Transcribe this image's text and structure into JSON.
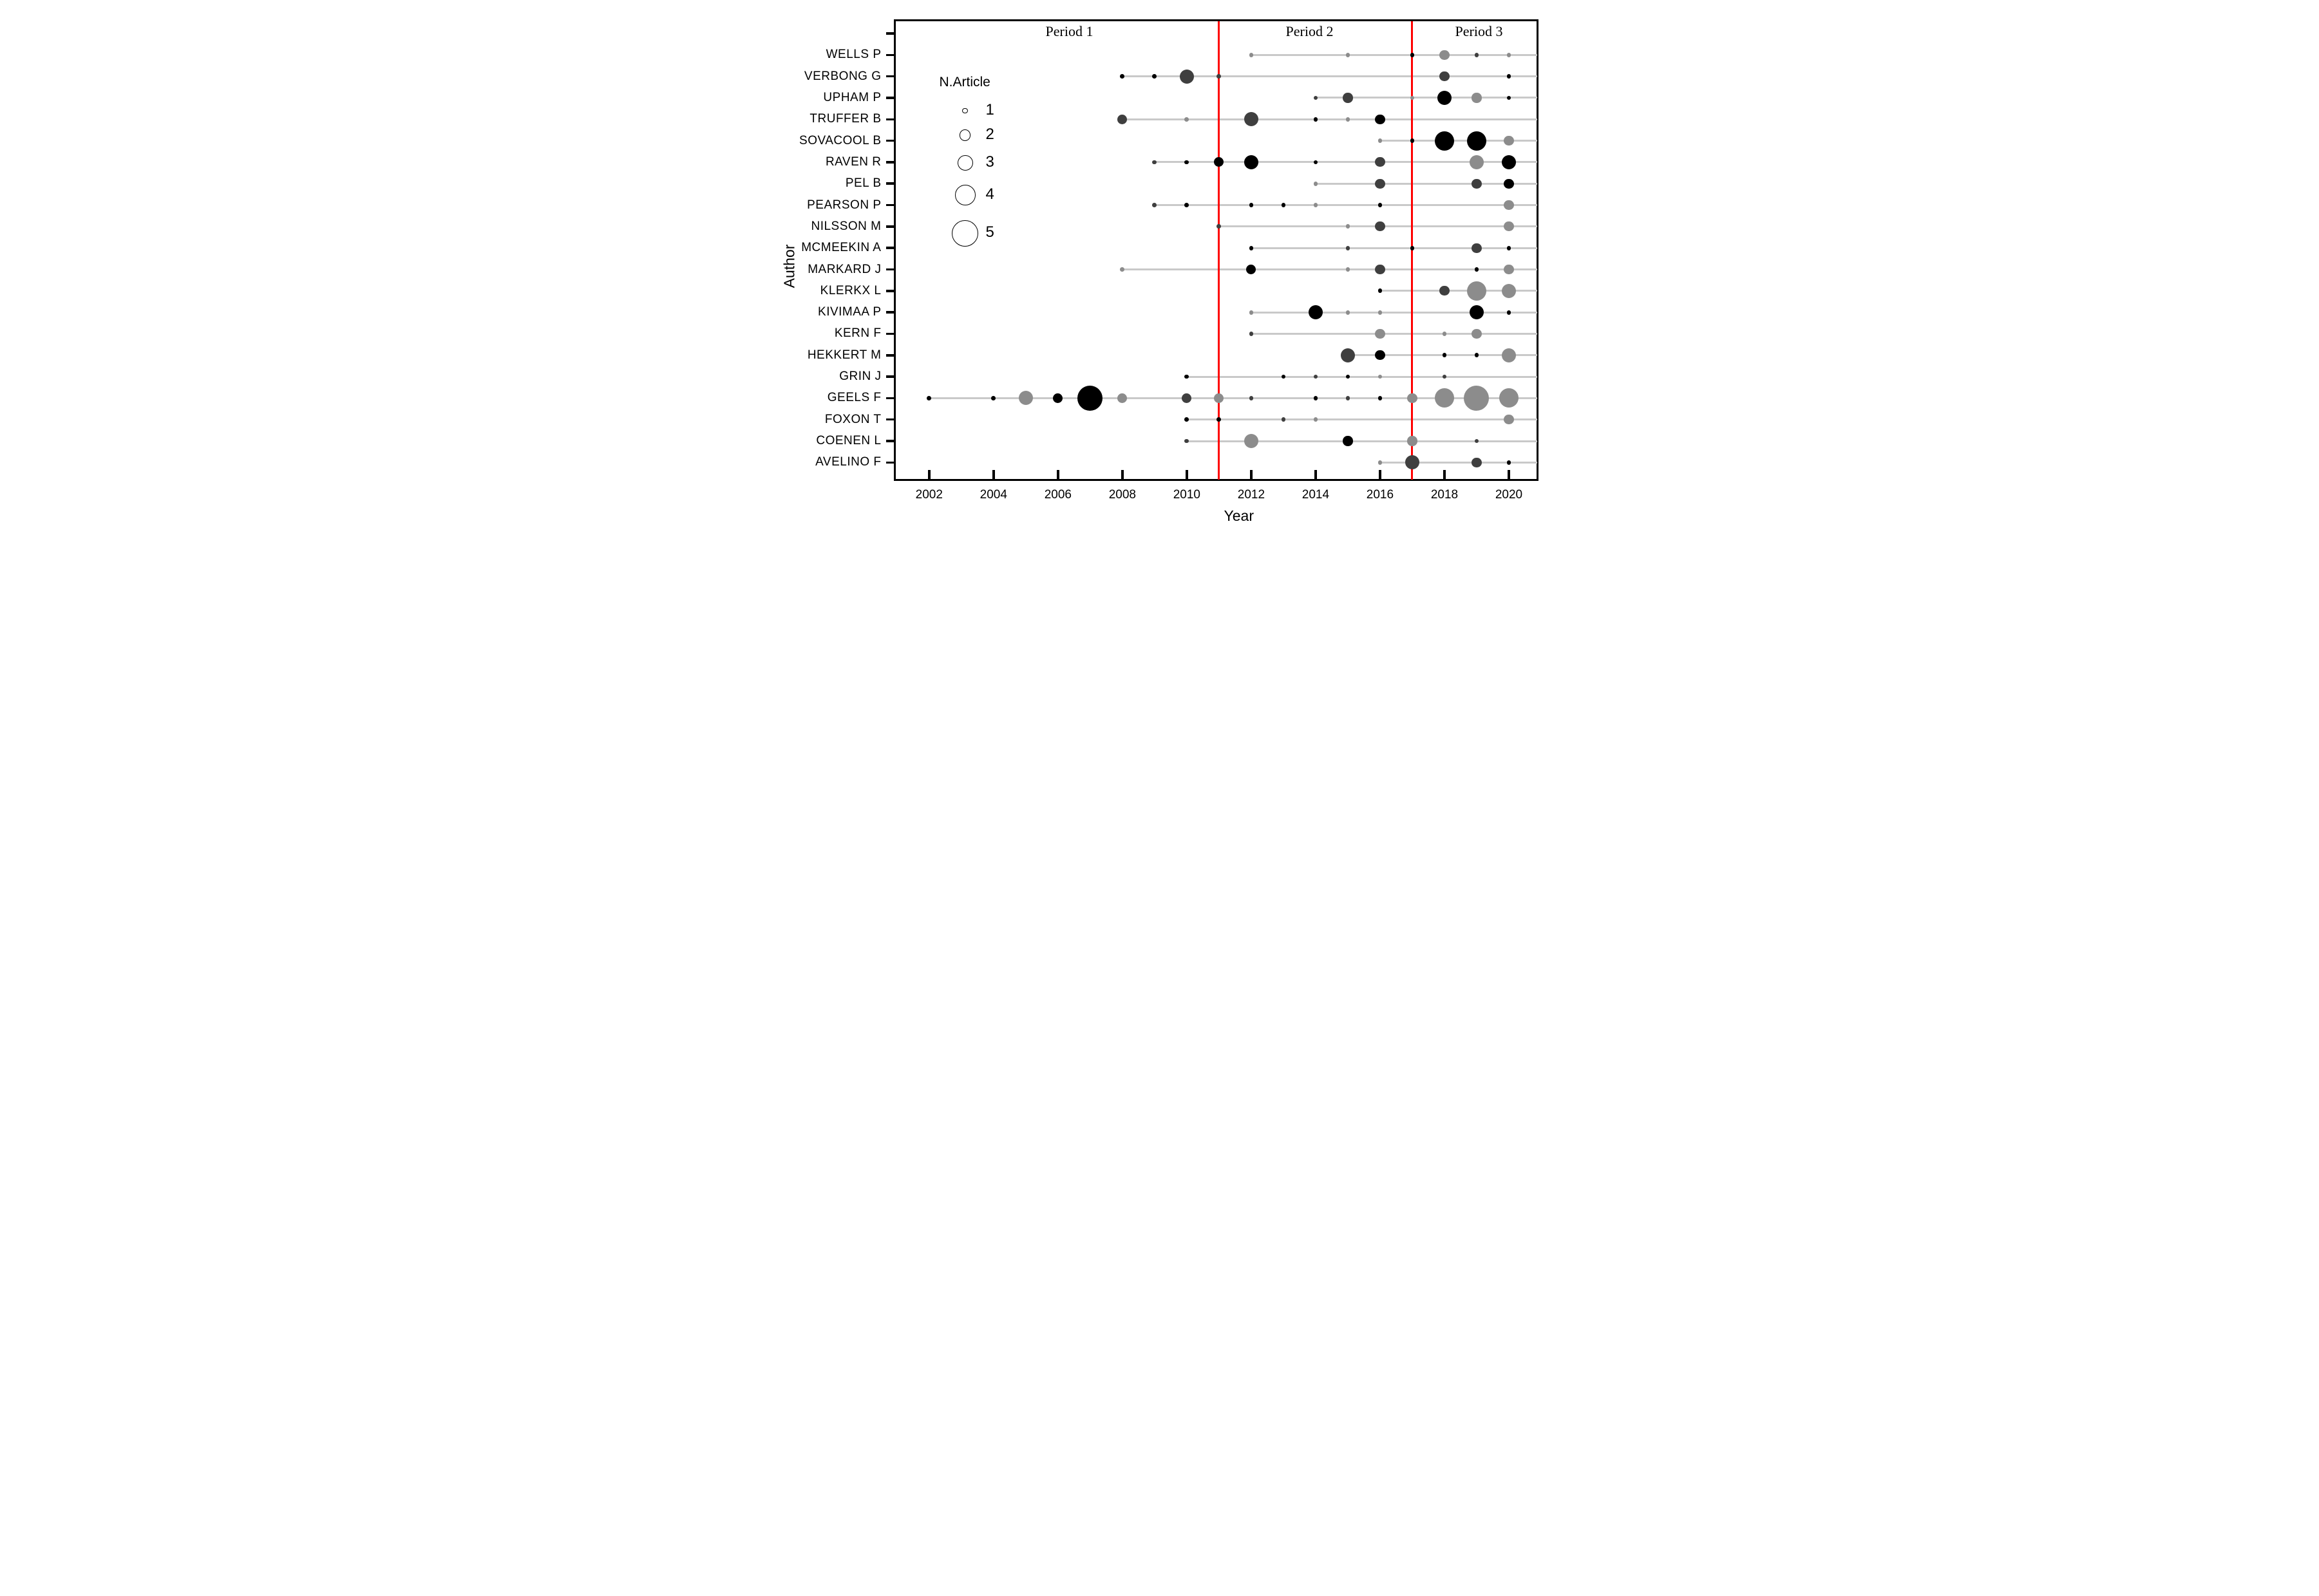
{
  "colors": {
    "black": "#000000",
    "dark": "#3f3f3f",
    "gray": "#8c8c8c",
    "row_line": "#c9c9c9",
    "divider": "#ff0000",
    "background": "#ffffff",
    "text": "#000000"
  },
  "chart_data": {
    "type": "scatter",
    "subtype": "bubble-timeline",
    "xlabel": "Year",
    "ylabel": "Author",
    "x_range": [
      2001,
      2021
    ],
    "x_ticks": [
      2002,
      2004,
      2006,
      2008,
      2010,
      2012,
      2014,
      2016,
      2018,
      2020
    ],
    "grid": false,
    "period_labels": [
      "Period 1",
      "Period 2",
      "Period 3"
    ],
    "period_dividers_years": [
      2011,
      2017
    ],
    "legend": {
      "title": "N.Article",
      "sizes": [
        1,
        2,
        3,
        4,
        5
      ],
      "position": "upper-left-inside"
    },
    "size_note": "bubble size class = number of articles (1-5)",
    "series": [
      {
        "author": "WELLS P",
        "line_start": 2012,
        "points": [
          {
            "year": 2012,
            "n": 1,
            "color": "gray"
          },
          {
            "year": 2015,
            "n": 1,
            "color": "gray"
          },
          {
            "year": 2017,
            "n": 1,
            "color": "black"
          },
          {
            "year": 2018,
            "n": 2,
            "color": "gray"
          },
          {
            "year": 2019,
            "n": 1,
            "color": "dark"
          },
          {
            "year": 2020,
            "n": 1,
            "color": "gray"
          }
        ]
      },
      {
        "author": "VERBONG G",
        "line_start": 2008,
        "points": [
          {
            "year": 2008,
            "n": 1,
            "color": "black"
          },
          {
            "year": 2009,
            "n": 1,
            "color": "black"
          },
          {
            "year": 2010,
            "n": 3,
            "color": "dark"
          },
          {
            "year": 2011,
            "n": 1,
            "color": "dark"
          },
          {
            "year": 2018,
            "n": 2,
            "color": "dark"
          },
          {
            "year": 2020,
            "n": 1,
            "color": "black"
          }
        ]
      },
      {
        "author": "UPHAM P",
        "line_start": 2014,
        "points": [
          {
            "year": 2014,
            "n": 1,
            "color": "dark"
          },
          {
            "year": 2015,
            "n": 2,
            "color": "dark"
          },
          {
            "year": 2017,
            "n": 1,
            "color": "gray"
          },
          {
            "year": 2018,
            "n": 3,
            "color": "black"
          },
          {
            "year": 2019,
            "n": 2,
            "color": "gray"
          },
          {
            "year": 2020,
            "n": 1,
            "color": "black"
          }
        ]
      },
      {
        "author": "TRUFFER B",
        "line_start": 2008,
        "points": [
          {
            "year": 2008,
            "n": 2,
            "color": "dark"
          },
          {
            "year": 2010,
            "n": 1,
            "color": "gray"
          },
          {
            "year": 2012,
            "n": 3,
            "color": "dark"
          },
          {
            "year": 2014,
            "n": 1,
            "color": "black"
          },
          {
            "year": 2015,
            "n": 1,
            "color": "gray"
          },
          {
            "year": 2016,
            "n": 2,
            "color": "black"
          }
        ]
      },
      {
        "author": "SOVACOOL B",
        "line_start": 2016,
        "points": [
          {
            "year": 2016,
            "n": 1,
            "color": "gray"
          },
          {
            "year": 2017,
            "n": 1,
            "color": "black"
          },
          {
            "year": 2018,
            "n": 4,
            "color": "black"
          },
          {
            "year": 2019,
            "n": 4,
            "color": "black"
          },
          {
            "year": 2020,
            "n": 2,
            "color": "gray"
          }
        ]
      },
      {
        "author": "RAVEN R",
        "line_start": 2009,
        "points": [
          {
            "year": 2009,
            "n": 1,
            "color": "dark"
          },
          {
            "year": 2010,
            "n": 1,
            "color": "black"
          },
          {
            "year": 2011,
            "n": 2,
            "color": "black"
          },
          {
            "year": 2012,
            "n": 3,
            "color": "black"
          },
          {
            "year": 2014,
            "n": 1,
            "color": "black"
          },
          {
            "year": 2016,
            "n": 2,
            "color": "dark"
          },
          {
            "year": 2019,
            "n": 3,
            "color": "gray"
          },
          {
            "year": 2020,
            "n": 3,
            "color": "black"
          }
        ]
      },
      {
        "author": "PEL B",
        "line_start": 2014,
        "points": [
          {
            "year": 2014,
            "n": 1,
            "color": "gray"
          },
          {
            "year": 2016,
            "n": 2,
            "color": "dark"
          },
          {
            "year": 2019,
            "n": 2,
            "color": "dark"
          },
          {
            "year": 2020,
            "n": 2,
            "color": "black"
          }
        ]
      },
      {
        "author": "PEARSON P",
        "line_start": 2009,
        "points": [
          {
            "year": 2009,
            "n": 1,
            "color": "dark"
          },
          {
            "year": 2010,
            "n": 1,
            "color": "black"
          },
          {
            "year": 2012,
            "n": 1,
            "color": "black"
          },
          {
            "year": 2013,
            "n": 1,
            "color": "black"
          },
          {
            "year": 2014,
            "n": 1,
            "color": "gray"
          },
          {
            "year": 2016,
            "n": 1,
            "color": "black"
          },
          {
            "year": 2020,
            "n": 2,
            "color": "gray"
          }
        ]
      },
      {
        "author": "NILSSON M",
        "line_start": 2011,
        "points": [
          {
            "year": 2011,
            "n": 1,
            "color": "dark"
          },
          {
            "year": 2015,
            "n": 1,
            "color": "gray"
          },
          {
            "year": 2016,
            "n": 2,
            "color": "dark"
          },
          {
            "year": 2020,
            "n": 2,
            "color": "gray"
          }
        ]
      },
      {
        "author": "MCMEEKIN A",
        "line_start": 2012,
        "points": [
          {
            "year": 2012,
            "n": 1,
            "color": "black"
          },
          {
            "year": 2015,
            "n": 1,
            "color": "dark"
          },
          {
            "year": 2017,
            "n": 1,
            "color": "black"
          },
          {
            "year": 2019,
            "n": 2,
            "color": "dark"
          },
          {
            "year": 2020,
            "n": 1,
            "color": "black"
          }
        ]
      },
      {
        "author": "MARKARD J",
        "line_start": 2008,
        "points": [
          {
            "year": 2008,
            "n": 1,
            "color": "gray"
          },
          {
            "year": 2012,
            "n": 2,
            "color": "black"
          },
          {
            "year": 2015,
            "n": 1,
            "color": "gray"
          },
          {
            "year": 2016,
            "n": 2,
            "color": "dark"
          },
          {
            "year": 2019,
            "n": 1,
            "color": "black"
          },
          {
            "year": 2020,
            "n": 2,
            "color": "gray"
          }
        ]
      },
      {
        "author": "KLERKX L",
        "line_start": 2016,
        "points": [
          {
            "year": 2016,
            "n": 1,
            "color": "black"
          },
          {
            "year": 2018,
            "n": 2,
            "color": "dark"
          },
          {
            "year": 2019,
            "n": 4,
            "color": "gray"
          },
          {
            "year": 2020,
            "n": 3,
            "color": "gray"
          }
        ]
      },
      {
        "author": "KIVIMAA P",
        "line_start": 2012,
        "points": [
          {
            "year": 2012,
            "n": 1,
            "color": "gray"
          },
          {
            "year": 2014,
            "n": 3,
            "color": "black"
          },
          {
            "year": 2015,
            "n": 1,
            "color": "gray"
          },
          {
            "year": 2016,
            "n": 1,
            "color": "gray"
          },
          {
            "year": 2019,
            "n": 3,
            "color": "black"
          },
          {
            "year": 2020,
            "n": 1,
            "color": "black"
          }
        ]
      },
      {
        "author": "KERN F",
        "line_start": 2012,
        "points": [
          {
            "year": 2012,
            "n": 1,
            "color": "dark"
          },
          {
            "year": 2016,
            "n": 2,
            "color": "gray"
          },
          {
            "year": 2018,
            "n": 1,
            "color": "gray"
          },
          {
            "year": 2019,
            "n": 2,
            "color": "gray"
          }
        ]
      },
      {
        "author": "HEKKERT M",
        "line_start": 2015,
        "points": [
          {
            "year": 2015,
            "n": 3,
            "color": "dark"
          },
          {
            "year": 2016,
            "n": 2,
            "color": "black"
          },
          {
            "year": 2018,
            "n": 1,
            "color": "black"
          },
          {
            "year": 2019,
            "n": 1,
            "color": "black"
          },
          {
            "year": 2020,
            "n": 3,
            "color": "gray"
          }
        ]
      },
      {
        "author": "GRIN J",
        "line_start": 2010,
        "points": [
          {
            "year": 2010,
            "n": 1,
            "color": "black"
          },
          {
            "year": 2013,
            "n": 1,
            "color": "black"
          },
          {
            "year": 2014,
            "n": 1,
            "color": "dark"
          },
          {
            "year": 2015,
            "n": 1,
            "color": "black"
          },
          {
            "year": 2016,
            "n": 1,
            "color": "gray"
          },
          {
            "year": 2018,
            "n": 1,
            "color": "dark"
          }
        ]
      },
      {
        "author": "GEELS F",
        "line_start": 2002,
        "points": [
          {
            "year": 2002,
            "n": 1,
            "color": "black"
          },
          {
            "year": 2004,
            "n": 1,
            "color": "black"
          },
          {
            "year": 2005,
            "n": 3,
            "color": "gray"
          },
          {
            "year": 2006,
            "n": 2,
            "color": "black"
          },
          {
            "year": 2007,
            "n": 5,
            "color": "black"
          },
          {
            "year": 2008,
            "n": 2,
            "color": "gray"
          },
          {
            "year": 2010,
            "n": 2,
            "color": "dark"
          },
          {
            "year": 2011,
            "n": 2,
            "color": "gray"
          },
          {
            "year": 2012,
            "n": 1,
            "color": "dark"
          },
          {
            "year": 2014,
            "n": 1,
            "color": "black"
          },
          {
            "year": 2015,
            "n": 1,
            "color": "dark"
          },
          {
            "year": 2016,
            "n": 1,
            "color": "black"
          },
          {
            "year": 2017,
            "n": 2,
            "color": "gray"
          },
          {
            "year": 2018,
            "n": 4,
            "color": "gray"
          },
          {
            "year": 2019,
            "n": 5,
            "color": "gray"
          },
          {
            "year": 2020,
            "n": 4,
            "color": "gray"
          }
        ]
      },
      {
        "author": "FOXON T",
        "line_start": 2010,
        "points": [
          {
            "year": 2010,
            "n": 1,
            "color": "black"
          },
          {
            "year": 2011,
            "n": 1,
            "color": "black"
          },
          {
            "year": 2013,
            "n": 1,
            "color": "dark"
          },
          {
            "year": 2014,
            "n": 1,
            "color": "gray"
          },
          {
            "year": 2020,
            "n": 2,
            "color": "gray"
          }
        ]
      },
      {
        "author": "COENEN L",
        "line_start": 2010,
        "points": [
          {
            "year": 2010,
            "n": 1,
            "color": "dark"
          },
          {
            "year": 2012,
            "n": 3,
            "color": "gray"
          },
          {
            "year": 2015,
            "n": 2,
            "color": "black"
          },
          {
            "year": 2017,
            "n": 2,
            "color": "gray"
          },
          {
            "year": 2019,
            "n": 1,
            "color": "dark"
          }
        ]
      },
      {
        "author": "AVELINO F",
        "line_start": 2016,
        "points": [
          {
            "year": 2016,
            "n": 1,
            "color": "gray"
          },
          {
            "year": 2017,
            "n": 3,
            "color": "dark"
          },
          {
            "year": 2019,
            "n": 2,
            "color": "dark"
          },
          {
            "year": 2020,
            "n": 1,
            "color": "black"
          }
        ]
      }
    ]
  }
}
